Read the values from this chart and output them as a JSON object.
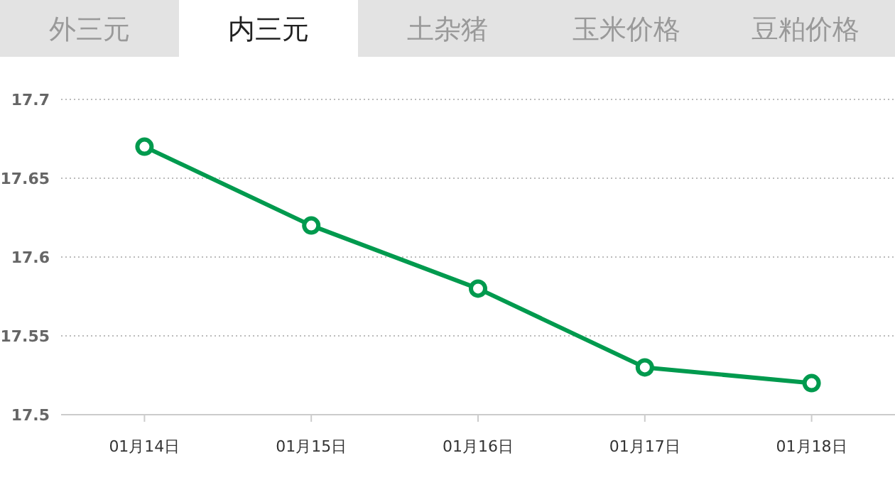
{
  "chart_data": {
    "type": "line",
    "categories": [
      "01月14日",
      "01月15日",
      "01月16日",
      "01月17日",
      "01月18日"
    ],
    "series": [
      {
        "color": "#009a4e",
        "values": [
          17.67,
          17.62,
          17.58,
          17.53,
          17.52
        ]
      }
    ],
    "ylim": [
      17.5,
      17.7
    ],
    "yticks": [
      17.5,
      17.55,
      17.6,
      17.65,
      17.7
    ],
    "grid": "y",
    "marker": "circle",
    "line_style": "solid",
    "annotations": [
      "外三元",
      "内三元",
      "土杂猪",
      "玉米价格",
      "豆粕价格"
    ]
  }
}
